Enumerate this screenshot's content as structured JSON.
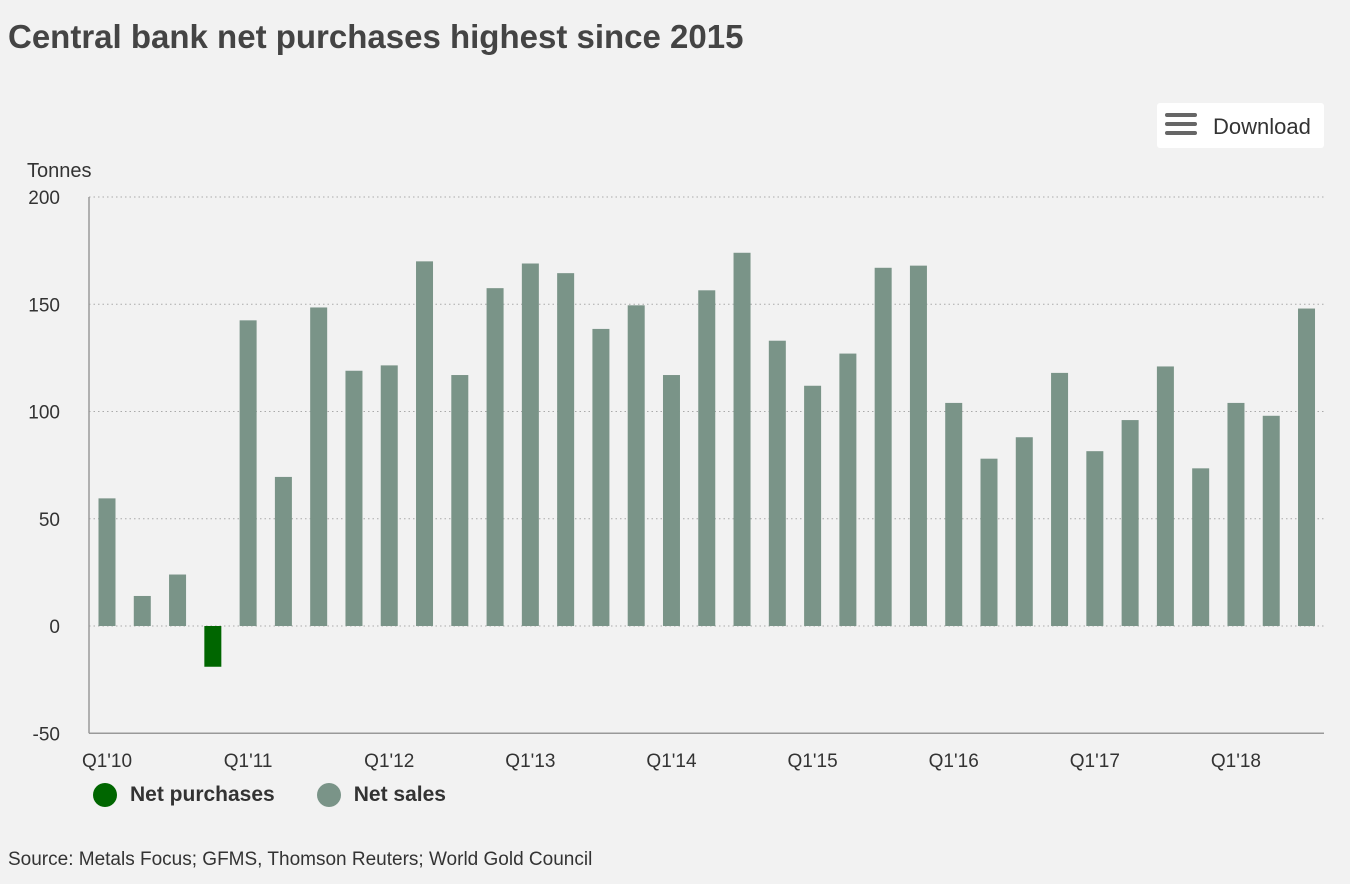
{
  "page": {
    "title": "Central bank net purchases highest since 2015",
    "download_label": "Download",
    "source": "Source: Metals Focus; GFMS, Thomson Reuters; World Gold Council"
  },
  "icons": {
    "download": "hamburger-menu-icon"
  },
  "colors": {
    "background": "#f2f2f2",
    "net_purchases": "#006600",
    "net_sales": "#7a9488",
    "axis": "#999999",
    "grid": "#aaaaaa"
  },
  "chart_data": {
    "type": "bar",
    "ylabel": "Tonnes",
    "ylim": [
      -50,
      200
    ],
    "yticks": [
      -50,
      0,
      50,
      100,
      150,
      200
    ],
    "grid": "horizontal dotted",
    "legend_position": "bottom-left",
    "x_tick_labels": [
      "Q1'10",
      "Q1'11",
      "Q1'12",
      "Q1'13",
      "Q1'14",
      "Q1'15",
      "Q1'16",
      "Q1'17",
      "Q1'18"
    ],
    "categories": [
      "Q1'10",
      "Q2'10",
      "Q3'10",
      "Q4'10",
      "Q1'11",
      "Q2'11",
      "Q3'11",
      "Q4'11",
      "Q1'12",
      "Q2'12",
      "Q3'12",
      "Q4'12",
      "Q1'13",
      "Q2'13",
      "Q3'13",
      "Q4'13",
      "Q1'14",
      "Q2'14",
      "Q3'14",
      "Q4'14",
      "Q1'15",
      "Q2'15",
      "Q3'15",
      "Q4'15",
      "Q1'16",
      "Q2'16",
      "Q3'16",
      "Q4'16",
      "Q1'17",
      "Q2'17",
      "Q3'17",
      "Q4'17",
      "Q1'18",
      "Q2'18",
      "Q3'18"
    ],
    "values": [
      59.5,
      14,
      24,
      -19,
      142.5,
      69.5,
      148.5,
      119,
      121.5,
      170,
      117,
      157.5,
      169,
      164.5,
      138.5,
      149.5,
      117,
      156.5,
      174,
      133,
      112,
      127,
      167,
      168,
      104,
      78,
      88,
      118,
      81.5,
      96,
      121,
      73.5,
      104,
      98,
      148
    ],
    "series": [
      {
        "name": "Net purchases",
        "color": "#006600"
      },
      {
        "name": "Net sales",
        "color": "#7a9488"
      }
    ]
  }
}
